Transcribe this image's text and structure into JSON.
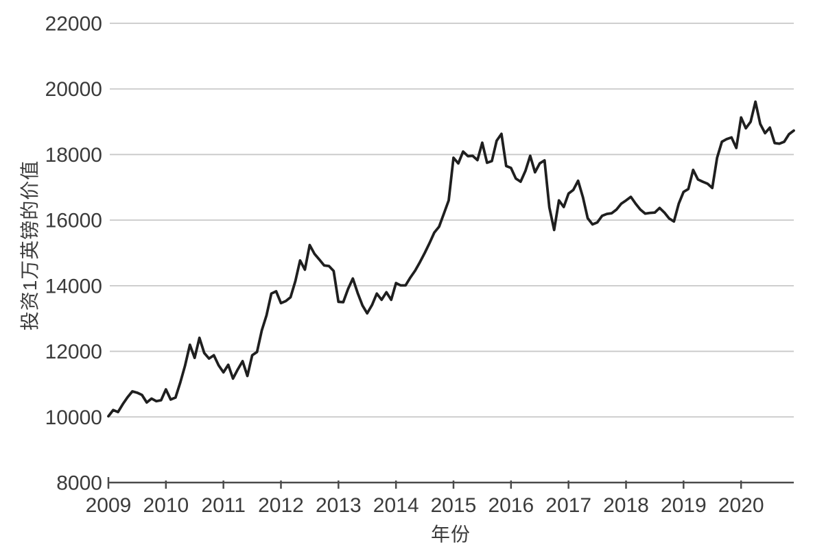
{
  "page": {
    "background": "#ffffff"
  },
  "chart_data": {
    "type": "line",
    "title": "",
    "xlabel": "年份",
    "ylabel": "投资1万英镑的价值",
    "ylim": [
      8000,
      22000
    ],
    "y_ticks": [
      8000,
      10000,
      12000,
      14000,
      16000,
      18000,
      20000,
      22000
    ],
    "x_tick_labels": [
      "2009",
      "2010",
      "2011",
      "2012",
      "2013",
      "2014",
      "2015",
      "2016",
      "2017",
      "2018",
      "2019",
      "2020"
    ],
    "x_interval": "monthly",
    "x_start": "2009-01",
    "x_end": "2020-12",
    "grid": "horizontal-only",
    "legend": "none",
    "colors": {
      "line": "#1f1f1f",
      "grid": "#c8c8c8",
      "axis": "#4a4a4a",
      "text": "#3b3b3b"
    },
    "values": [
      10020,
      10210,
      10150,
      10390,
      10600,
      10780,
      10740,
      10670,
      10440,
      10560,
      10480,
      10510,
      10840,
      10530,
      10590,
      11050,
      11570,
      12200,
      11800,
      12410,
      11950,
      11780,
      11880,
      11570,
      11360,
      11590,
      11170,
      11450,
      11700,
      11250,
      11880,
      11980,
      12640,
      13100,
      13760,
      13830,
      13470,
      13530,
      13650,
      14140,
      14770,
      14490,
      15240,
      14970,
      14800,
      14620,
      14600,
      14450,
      13510,
      13500,
      13900,
      14220,
      13780,
      13400,
      13160,
      13410,
      13760,
      13570,
      13800,
      13570,
      14080,
      14010,
      14010,
      14250,
      14460,
      14720,
      15000,
      15300,
      15620,
      15800,
      16200,
      16600,
      17900,
      17730,
      18090,
      17950,
      17960,
      17830,
      18360,
      17750,
      17800,
      18420,
      18630,
      17650,
      17590,
      17270,
      17170,
      17500,
      17960,
      17460,
      17730,
      17820,
      16390,
      15700,
      16600,
      16400,
      16810,
      16920,
      17200,
      16700,
      16060,
      15870,
      15930,
      16130,
      16190,
      16210,
      16320,
      16500,
      16600,
      16710,
      16500,
      16320,
      16200,
      16220,
      16230,
      16370,
      16230,
      16050,
      15960,
      16500,
      16860,
      16950,
      17530,
      17240,
      17170,
      17110,
      16980,
      17900,
      18390,
      18470,
      18520,
      18200,
      19130,
      18800,
      19000,
      19610,
      18930,
      18650,
      18820,
      18350,
      18330,
      18390,
      18620,
      18730
    ]
  }
}
